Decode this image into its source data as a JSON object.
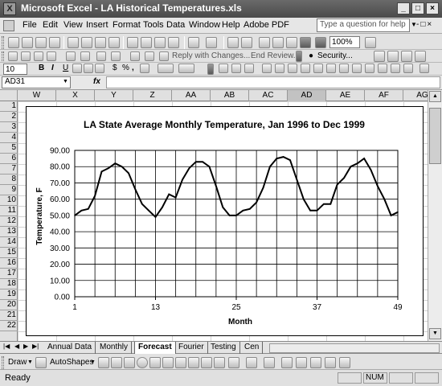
{
  "window": {
    "title": "Microsoft Excel - LA Historical Temperatures.xls",
    "app_icon": "excel-icon"
  },
  "menu": {
    "items": [
      "File",
      "Edit",
      "View",
      "Insert",
      "Format",
      "Tools",
      "Data",
      "Window",
      "Help",
      "Adobe PDF"
    ],
    "help_placeholder": "Type a question for help"
  },
  "toolbar": {
    "zoom": "100%",
    "reply_with_changes": "Reply with Changes...",
    "end_review": "End Review...",
    "security": "Security...",
    "font_size": "10",
    "bold": "B",
    "italic": "I",
    "underline": "U",
    "currency": "$",
    "percent": "%",
    "comma": ","
  },
  "formula_bar": {
    "name_box": "AD31",
    "fx": "fx",
    "value": ""
  },
  "grid": {
    "columns": [
      "W",
      "X",
      "Y",
      "Z",
      "AA",
      "AB",
      "AC",
      "AD",
      "AE",
      "AF",
      "AG"
    ],
    "selected_column": "AD",
    "rows": [
      "1",
      "2",
      "3",
      "4",
      "5",
      "6",
      "7",
      "8",
      "9",
      "10",
      "11",
      "12",
      "13",
      "14",
      "15",
      "16",
      "17",
      "18",
      "19",
      "20",
      "21",
      "22"
    ]
  },
  "chart_data": {
    "type": "line",
    "title": "LA State Average Monthly Temperature, Jan 1996 to Dec 1999",
    "xlabel": "Month",
    "ylabel": "Temperature, F",
    "xlim": [
      1,
      49
    ],
    "ylim": [
      0,
      90
    ],
    "x_ticks": [
      "1",
      "13",
      "25",
      "37",
      "49"
    ],
    "y_ticks": [
      "0.00",
      "10.00",
      "20.00",
      "30.00",
      "40.00",
      "50.00",
      "60.00",
      "70.00",
      "80.00",
      "90.00"
    ],
    "grid": true,
    "legend": false,
    "x": [
      1,
      2,
      3,
      4,
      5,
      6,
      7,
      8,
      9,
      10,
      11,
      12,
      13,
      14,
      15,
      16,
      17,
      18,
      19,
      20,
      21,
      22,
      23,
      24,
      25,
      26,
      27,
      28,
      29,
      30,
      31,
      32,
      33,
      34,
      35,
      36,
      37,
      38,
      39,
      40,
      41,
      42,
      43,
      44,
      45,
      46,
      47,
      48,
      49
    ],
    "values": [
      50,
      53,
      54,
      62,
      77,
      79,
      82,
      80,
      76,
      66,
      57,
      53,
      49,
      55,
      63,
      61,
      72,
      79,
      83,
      83,
      80,
      68,
      55,
      50,
      50,
      53,
      54,
      58,
      67,
      80,
      85,
      86,
      84,
      72,
      60,
      53,
      53,
      57,
      57,
      69,
      73,
      80,
      82,
      85,
      78,
      68,
      60,
      50,
      52
    ]
  },
  "sheets": {
    "tabs": [
      "Annual Data",
      "Monthly",
      "Forecast",
      "Fourier",
      "Testing",
      "Cen"
    ],
    "active": "Forecast"
  },
  "drawing_toolbar": {
    "draw": "Draw",
    "autoshapes": "AutoShapes"
  },
  "status": {
    "left": "Ready",
    "num": "NUM"
  }
}
